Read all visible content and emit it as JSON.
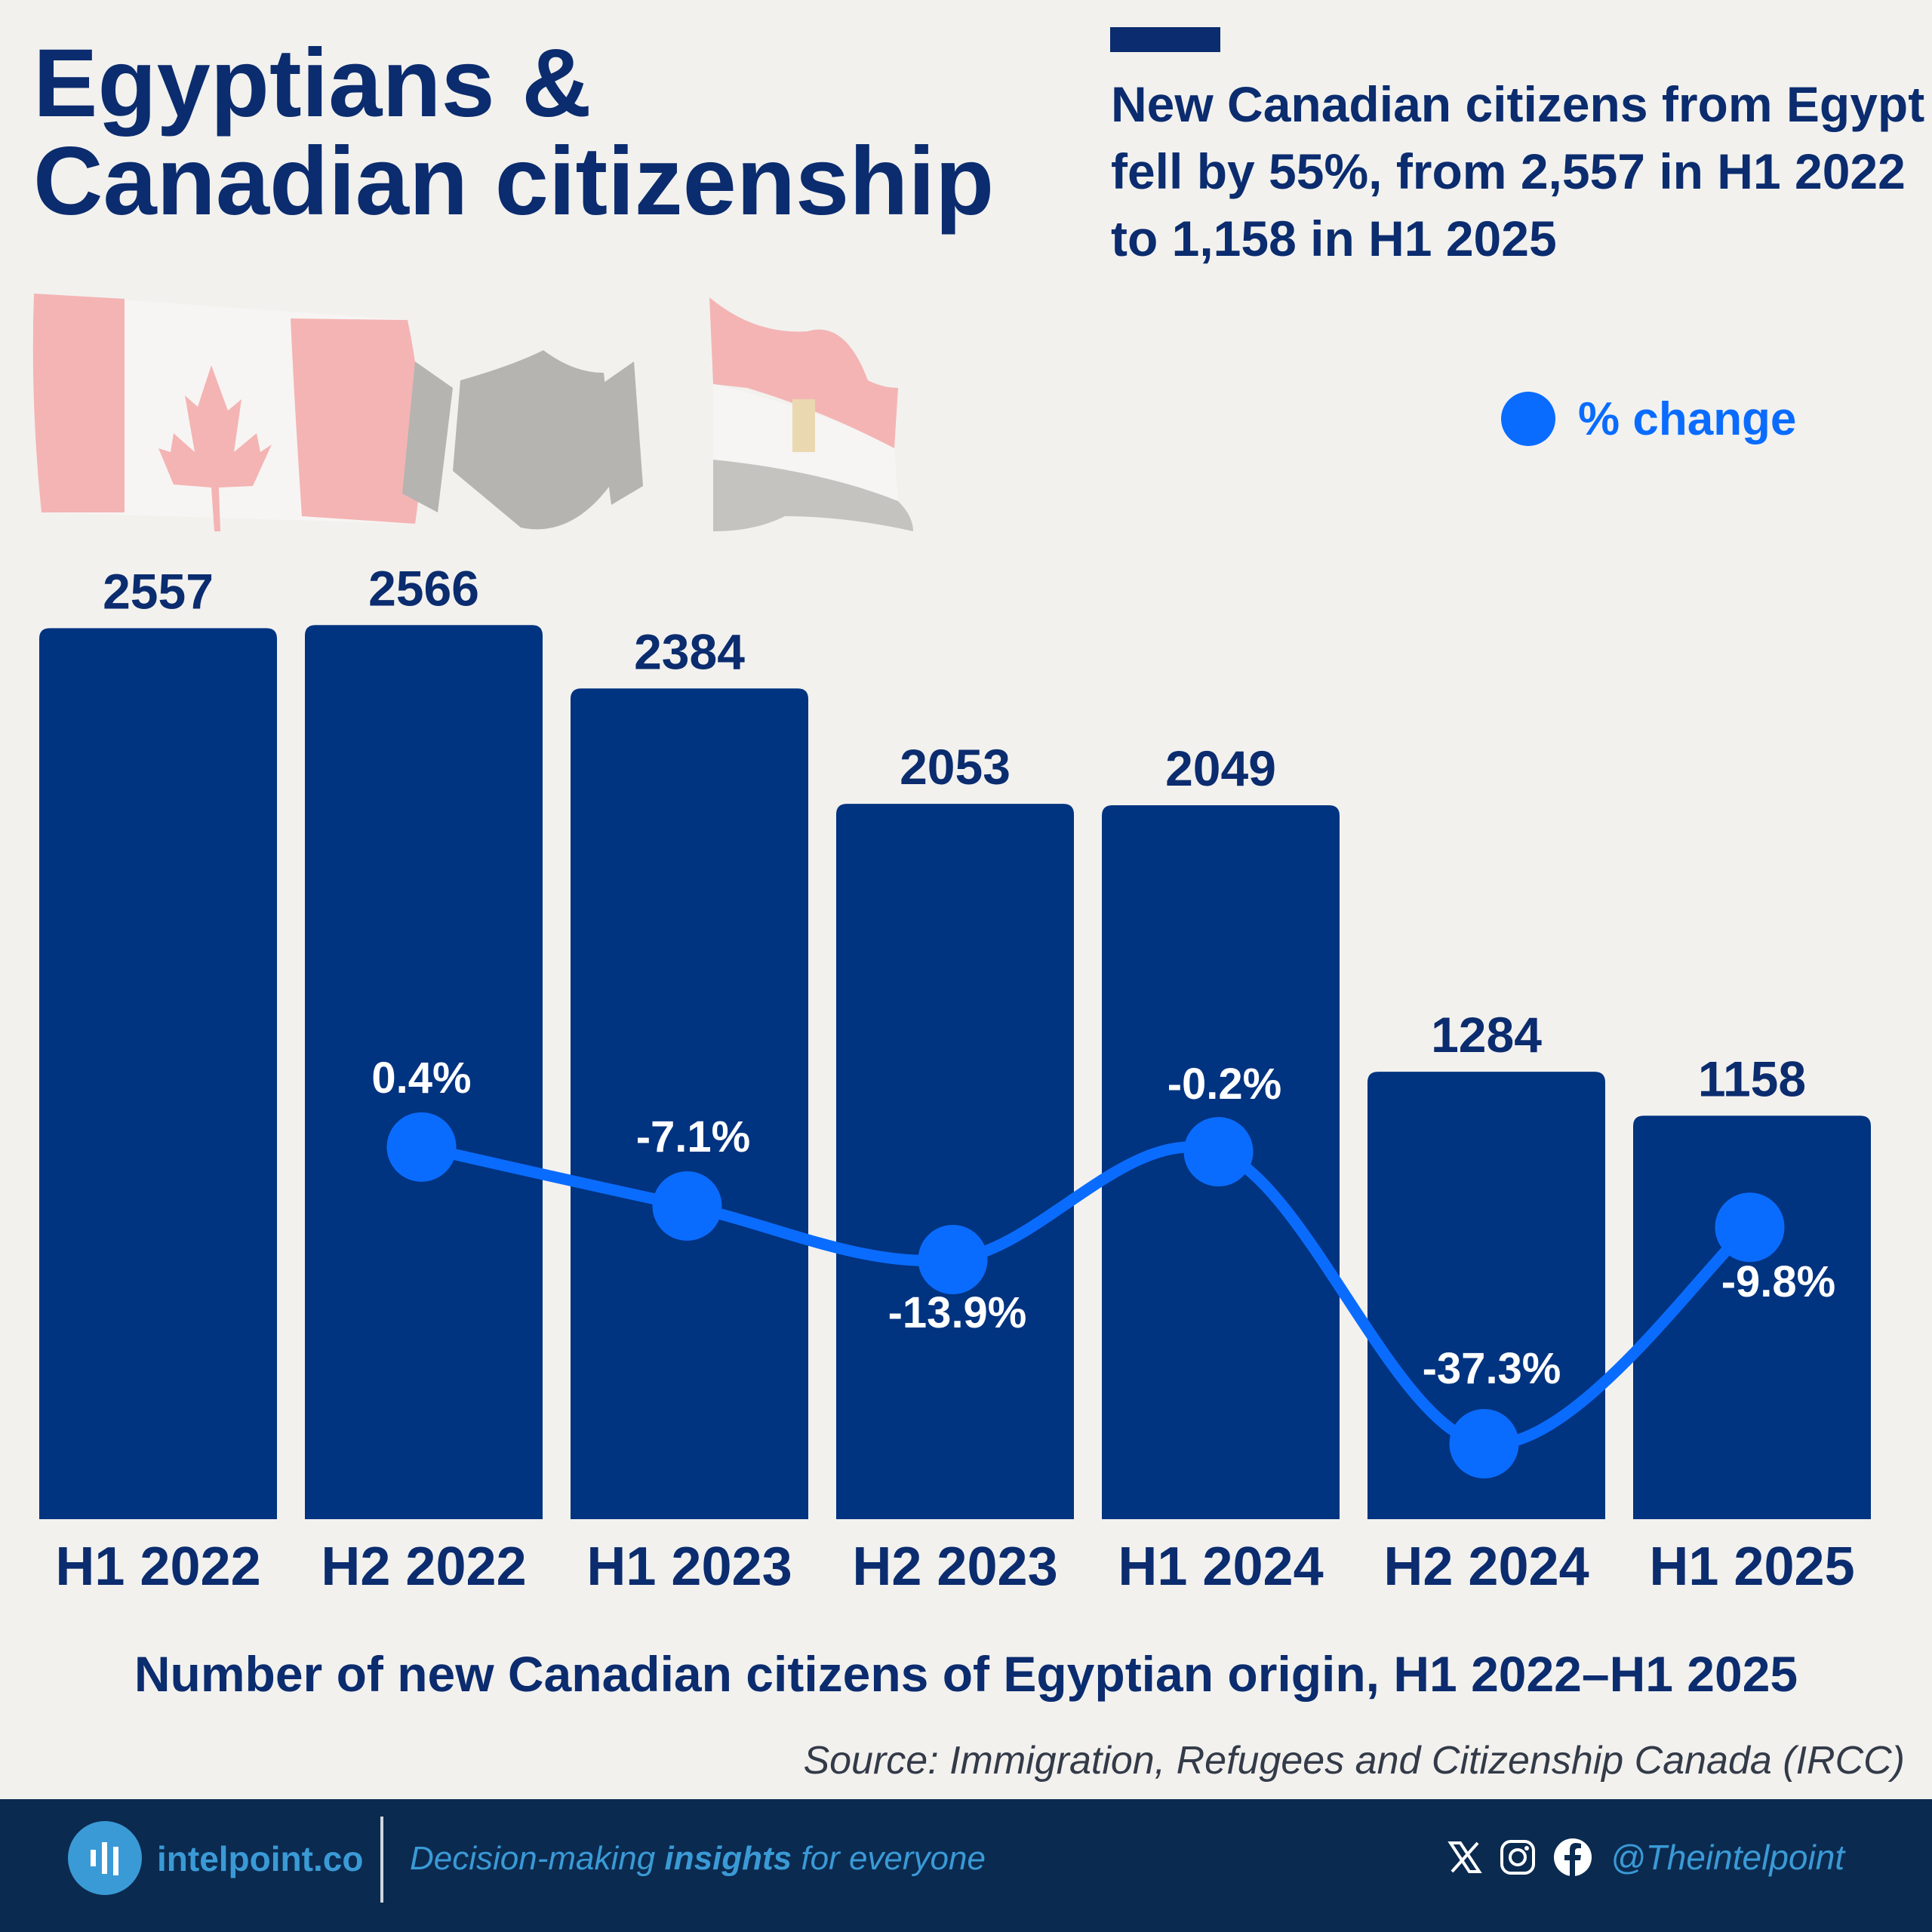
{
  "header": {
    "title_line1": "Egyptians &",
    "title_line2": "Canadian citizenship",
    "subtitle": "New Canadian citizens from Egypt fell by 55%, from 2,557 in H1 2022 to 1,158 in H1 2025"
  },
  "colors": {
    "bar": "#003380",
    "line": "#0a6cff",
    "title": "#0b2c6e",
    "footer": "#0b2a50",
    "brand": "#3a9ad6"
  },
  "chart_data": {
    "type": "bar",
    "categories": [
      "H1 2022",
      "H2 2022",
      "H1 2023",
      "H2 2023",
      "H1 2024",
      "H2 2024",
      "H1 2025"
    ],
    "values": [
      2557,
      2566,
      2384,
      2053,
      2049,
      1284,
      1158
    ],
    "value_labels": [
      "2557",
      "2566",
      "2384",
      "2053",
      "2049",
      "1284",
      "1158"
    ],
    "overlay_line": {
      "name": "% change",
      "values": [
        null,
        0.4,
        -7.1,
        -13.9,
        -0.2,
        -37.3,
        -9.8
      ],
      "labels": [
        "",
        "0.4%",
        "-7.1%",
        "-13.9%",
        "-0.2%",
        "-37.3%",
        "-9.8%"
      ]
    },
    "legend": "top-right",
    "grid": false,
    "title": "Number of new Canadian citizens of Egyptian origin, H1 2022–H1 2025"
  },
  "source": "Source: Immigration, Refugees and Citizenship Canada (IRCC)",
  "footer": {
    "brand": "intelpoint.co",
    "tagline_pre": "Decision-making ",
    "tagline_bold": "insights",
    "tagline_post": " for everyone",
    "handle": "@Theintelpoint",
    "icons": [
      "x-icon",
      "instagram-icon",
      "facebook-icon"
    ]
  }
}
